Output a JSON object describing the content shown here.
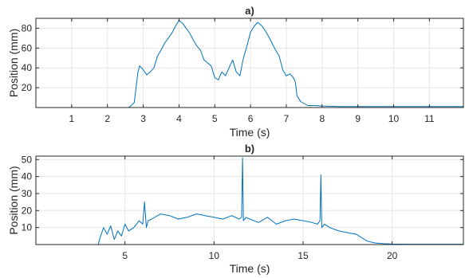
{
  "chart_data": [
    {
      "type": "line",
      "title": "a)",
      "xlabel": "Time (s)",
      "ylabel": "Position (mm)",
      "xlim": [
        0,
        11.95
      ],
      "ylim": [
        0,
        90
      ],
      "xticks": [
        1,
        2,
        3,
        4,
        5,
        6,
        7,
        8,
        9,
        10,
        11
      ],
      "yticks": [
        20,
        40,
        60,
        80
      ],
      "grid": true,
      "line_color": "#0072BD",
      "series": [
        {
          "x": [
            0,
            1,
            2,
            2.6,
            2.75,
            2.8,
            2.85,
            2.9,
            3.0,
            3.1,
            3.2,
            3.3,
            3.4,
            3.5,
            3.6,
            3.7,
            3.8,
            3.9,
            4.0,
            4.1,
            4.2,
            4.3,
            4.4,
            4.5,
            4.6,
            4.7,
            4.8,
            4.9,
            5.0,
            5.1,
            5.2,
            5.3,
            5.4,
            5.5,
            5.6,
            5.7,
            5.8,
            5.9,
            6.0,
            6.1,
            6.2,
            6.3,
            6.4,
            6.5,
            6.6,
            6.7,
            6.8,
            6.9,
            7.0,
            7.1,
            7.2,
            7.25,
            7.3,
            7.4,
            7.5,
            7.6,
            7.8,
            8.0,
            8.5,
            9.0,
            10.0,
            11.0,
            11.95
          ],
          "y": [
            0,
            0,
            0,
            0,
            5,
            20,
            35,
            42,
            38,
            33,
            36,
            40,
            52,
            58,
            65,
            70,
            75,
            82,
            88,
            85,
            80,
            75,
            68,
            62,
            58,
            48,
            45,
            42,
            30,
            28,
            36,
            32,
            40,
            48,
            36,
            32,
            50,
            62,
            76,
            82,
            86,
            83,
            78,
            72,
            65,
            58,
            52,
            38,
            32,
            34,
            30,
            26,
            12,
            6,
            4,
            2,
            2,
            1.5,
            1,
            1,
            1,
            1,
            1
          ]
        }
      ]
    },
    {
      "type": "line",
      "title": "b)",
      "xlabel": "Time (s)",
      "ylabel": "Position (mm)",
      "xlim": [
        0,
        24
      ],
      "ylim": [
        0,
        52
      ],
      "xticks": [
        5,
        10,
        15,
        20
      ],
      "yticks": [
        10,
        20,
        30,
        40,
        50
      ],
      "grid": true,
      "line_color": "#0072BD",
      "series": [
        {
          "x": [
            0,
            2,
            3.5,
            3.6,
            3.8,
            4.0,
            4.2,
            4.4,
            4.6,
            4.8,
            5.0,
            5.2,
            5.5,
            5.8,
            6.0,
            6.1,
            6.2,
            6.3,
            6.5,
            7.0,
            7.5,
            8.0,
            8.5,
            9.0,
            9.5,
            10.0,
            10.5,
            11.0,
            11.4,
            11.55,
            11.6,
            11.65,
            11.8,
            12.0,
            12.5,
            13.0,
            13.5,
            14.0,
            14.5,
            15.0,
            15.5,
            15.8,
            15.95,
            16.0,
            16.05,
            16.2,
            16.5,
            17.0,
            17.5,
            18.0,
            18.3,
            18.6,
            19.0,
            19.5,
            20.0,
            21.0,
            22.0,
            23.0,
            24.0
          ],
          "y": [
            0,
            0,
            0,
            4,
            10,
            6,
            11,
            3,
            8,
            5,
            12,
            8,
            10,
            14,
            12,
            25,
            10,
            14,
            15,
            18,
            17,
            15,
            16,
            18,
            17,
            16,
            15,
            17,
            15,
            16,
            51,
            14,
            16,
            15,
            13,
            16,
            12,
            14,
            15,
            14,
            13,
            12,
            14,
            41,
            10,
            12,
            10,
            8,
            7,
            6,
            4,
            2,
            1,
            0.5,
            0.3,
            0.2,
            0.2,
            0.2,
            0.2
          ]
        }
      ]
    }
  ]
}
